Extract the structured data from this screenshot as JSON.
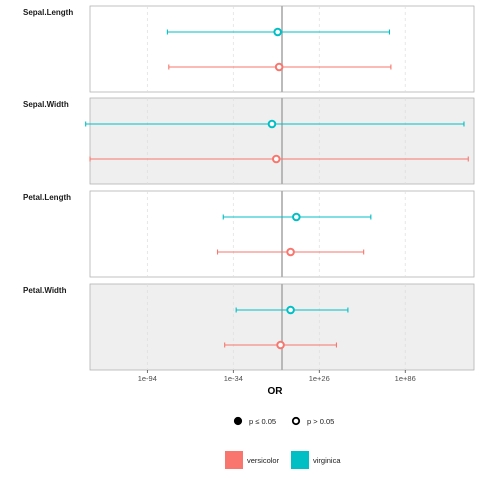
{
  "chart_data": {
    "type": "forest",
    "xlabel": "OR",
    "x_scale": "log10",
    "xlim_log10": [
      -134,
      134
    ],
    "reference_line_log10": 0,
    "x_ticks": [
      {
        "label": "1e-94",
        "log10": -94
      },
      {
        "label": "1e-34",
        "log10": -34
      },
      {
        "label": "1e+26",
        "log10": 26
      },
      {
        "label": "1e+86",
        "log10": 86
      }
    ],
    "facets": [
      {
        "name": "Sepal.Length",
        "shaded": false
      },
      {
        "name": "Sepal.Width",
        "shaded": true
      },
      {
        "name": "Petal.Length",
        "shaded": false
      },
      {
        "name": "Petal.Width",
        "shaded": true
      }
    ],
    "series": [
      {
        "name": "versicolor",
        "color": "#F8766D"
      },
      {
        "name": "virginica",
        "color": "#00BFC4"
      }
    ],
    "points": [
      {
        "facet": "Sepal.Length",
        "series": "virginica",
        "or_log10": -3,
        "lo_log10": -80,
        "hi_log10": 75,
        "p_significant": false
      },
      {
        "facet": "Sepal.Length",
        "series": "versicolor",
        "or_log10": -2,
        "lo_log10": -79,
        "hi_log10": 76,
        "p_significant": false
      },
      {
        "facet": "Sepal.Width",
        "series": "virginica",
        "or_log10": -7,
        "lo_log10": -137,
        "hi_log10": 127,
        "p_significant": false
      },
      {
        "facet": "Sepal.Width",
        "series": "versicolor",
        "or_log10": -4,
        "lo_log10": -134,
        "hi_log10": 130,
        "p_significant": false
      },
      {
        "facet": "Petal.Length",
        "series": "virginica",
        "or_log10": 10,
        "lo_log10": -41,
        "hi_log10": 62,
        "p_significant": false
      },
      {
        "facet": "Petal.Length",
        "series": "versicolor",
        "or_log10": 6,
        "lo_log10": -45,
        "hi_log10": 57,
        "p_significant": false
      },
      {
        "facet": "Petal.Width",
        "series": "virginica",
        "or_log10": 6,
        "lo_log10": -32,
        "hi_log10": 46,
        "p_significant": false
      },
      {
        "facet": "Petal.Width",
        "series": "versicolor",
        "or_log10": -1,
        "lo_log10": -40,
        "hi_log10": 38,
        "p_significant": false
      }
    ],
    "legend": {
      "shape": [
        {
          "label": "p ≤ 0.05",
          "filled": true
        },
        {
          "label": "p > 0.05",
          "filled": false
        }
      ],
      "colour": [
        {
          "label": "versicolor",
          "color": "#F8766D"
        },
        {
          "label": "virginica",
          "color": "#00BFC4"
        }
      ]
    }
  }
}
